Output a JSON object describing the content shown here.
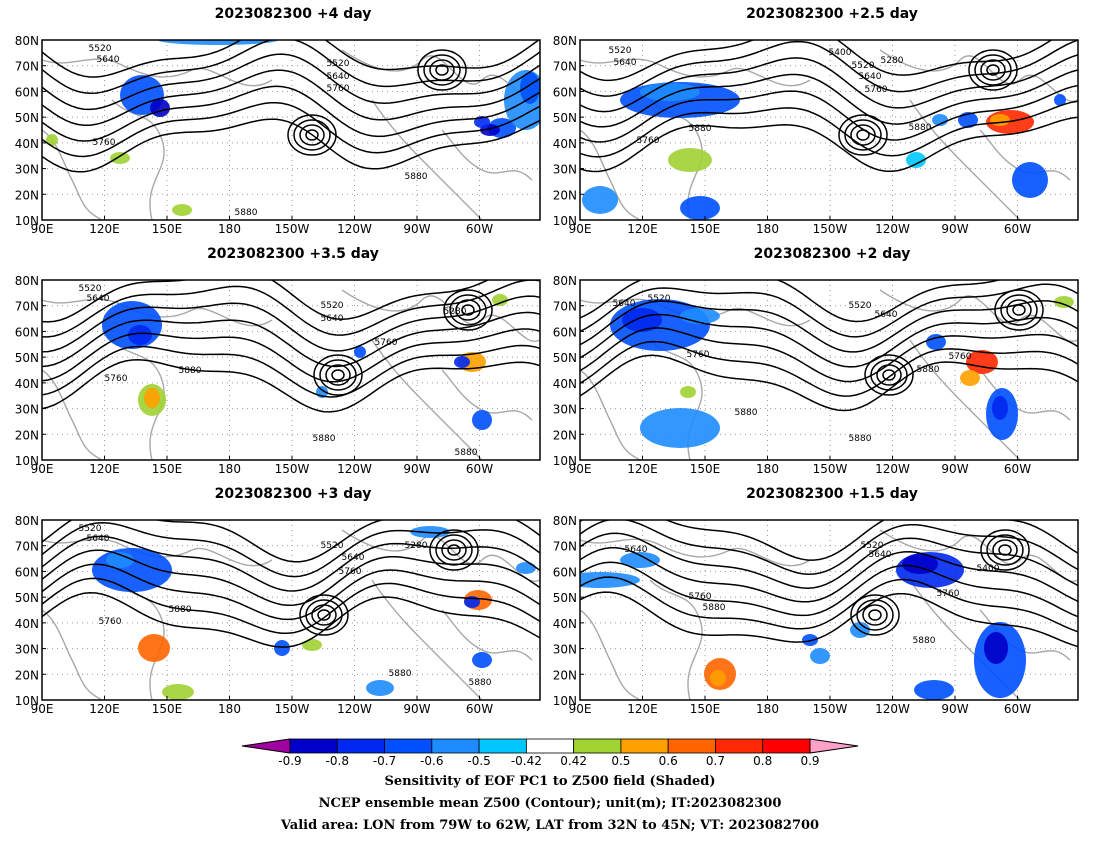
{
  "panels": [
    {
      "title": "2023082300  +4 day"
    },
    {
      "title": "2023082300  +2.5 day"
    },
    {
      "title": "2023082300  +3.5 day"
    },
    {
      "title": "2023082300  +2 day"
    },
    {
      "title": "2023082300  +3 day"
    },
    {
      "title": "2023082300  +1.5 day"
    }
  ],
  "axes": {
    "lat_labels": [
      "80N",
      "70N",
      "60N",
      "50N",
      "40N",
      "30N",
      "20N",
      "10N"
    ],
    "lon_labels": [
      "90E",
      "120E",
      "150E",
      "180",
      "150W",
      "120W",
      "90W",
      "60W"
    ]
  },
  "contour_labels": [
    "5280",
    "5400",
    "5520",
    "5640",
    "5760",
    "5880"
  ],
  "colorbar": {
    "tick_labels": [
      "-0.9",
      "-0.8",
      "-0.7",
      "-0.6",
      "-0.5",
      "-0.42",
      "0.42",
      "0.5",
      "0.6",
      "0.7",
      "0.8",
      "0.9"
    ],
    "colors": [
      "#a000a0",
      "#0000c8",
      "#0028f0",
      "#0050ff",
      "#1e8cff",
      "#00c8ff",
      "#ffffff",
      "#a0d232",
      "#ffa000",
      "#ff6400",
      "#ff2800",
      "#ff0000",
      "#ffa0c8"
    ]
  },
  "captions": {
    "line1": "Sensitivity of EOF PC1 to Z500 field (Shaded)",
    "line2": "NCEP ensemble mean Z500 (Contour); unit(m); IT:2023082300",
    "line3": "Valid area: LON from 79W to 62W, LAT from 32N to 45N; VT: 2023082700"
  }
}
